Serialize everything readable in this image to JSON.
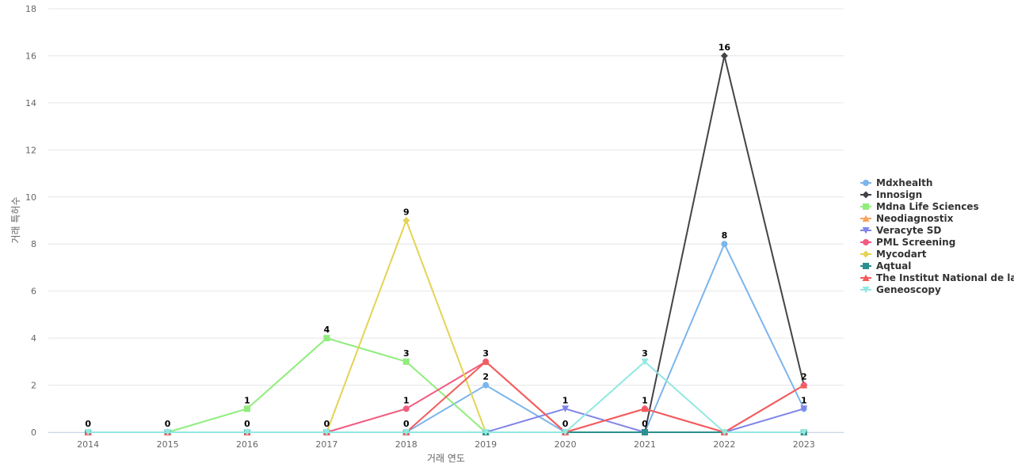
{
  "chart_data": {
    "type": "line",
    "title": "",
    "xlabel": "거래 연도",
    "ylabel": "거래 특허수",
    "ylim": [
      0,
      18
    ],
    "yticks": [
      0,
      2,
      4,
      6,
      8,
      10,
      12,
      14,
      16,
      18
    ],
    "categories": [
      "2014",
      "2015",
      "2016",
      "2017",
      "2018",
      "2019",
      "2020",
      "2021",
      "2022",
      "2023"
    ],
    "grid": true,
    "legend_position": "right",
    "series": [
      {
        "name": "Mdxhealth",
        "color": "#7cb5ec",
        "marker": "circle",
        "values": [
          0,
          0,
          0,
          0,
          0,
          2,
          0,
          0,
          8,
          1
        ]
      },
      {
        "name": "Innosign",
        "color": "#434348",
        "marker": "diamond",
        "values": [
          0,
          0,
          0,
          0,
          0,
          0,
          0,
          0,
          16,
          2
        ]
      },
      {
        "name": "Mdna Life Sciences",
        "color": "#90ed7d",
        "marker": "square",
        "values": [
          0,
          0,
          1,
          4,
          3,
          0,
          0,
          0,
          0,
          0
        ]
      },
      {
        "name": "Neodiagnostix",
        "color": "#f7a35c",
        "marker": "triangle",
        "values": [
          0,
          0,
          0,
          0,
          0,
          0,
          0,
          0,
          0,
          0
        ]
      },
      {
        "name": "Veracyte SD",
        "color": "#8085e9",
        "marker": "triangle-down",
        "values": [
          0,
          0,
          0,
          0,
          0,
          0,
          1,
          0,
          0,
          1
        ]
      },
      {
        "name": "PML Screening",
        "color": "#f15c80",
        "marker": "circle",
        "values": [
          0,
          0,
          0,
          0,
          1,
          3,
          0,
          1,
          0,
          2
        ]
      },
      {
        "name": "Mycodart",
        "color": "#e4d354",
        "marker": "diamond",
        "values": [
          0,
          0,
          0,
          0,
          9,
          0,
          0,
          0,
          0,
          0
        ]
      },
      {
        "name": "Aqtual",
        "color": "#2b908f",
        "marker": "square",
        "values": [
          0,
          0,
          0,
          0,
          0,
          0,
          0,
          0,
          0,
          0
        ]
      },
      {
        "name": "The Institut National de la...",
        "color": "#f45b5b",
        "marker": "triangle",
        "values": [
          0,
          0,
          0,
          0,
          0,
          3,
          0,
          1,
          0,
          2
        ]
      },
      {
        "name": "Geneoscopy",
        "color": "#91e8e1",
        "marker": "triangle-down",
        "values": [
          0,
          0,
          0,
          0,
          0,
          0,
          0,
          3,
          0,
          0
        ]
      }
    ],
    "data_labels": [
      {
        "series": "Mdxhealth",
        "category": "2014",
        "value": 0
      },
      {
        "series": "Mdxhealth",
        "category": "2015",
        "value": 0
      },
      {
        "series": "Mdxhealth",
        "category": "2016",
        "value": 0
      },
      {
        "series": "Mdxhealth",
        "category": "2017",
        "value": 0
      },
      {
        "series": "Mdxhealth",
        "category": "2018",
        "value": 0
      },
      {
        "series": "Mdxhealth",
        "category": "2019",
        "value": 2
      },
      {
        "series": "Mdxhealth",
        "category": "2020",
        "value": 0
      },
      {
        "series": "Mdxhealth",
        "category": "2021",
        "value": 0
      },
      {
        "series": "Mdxhealth",
        "category": "2022",
        "value": 8
      },
      {
        "series": "Mdxhealth",
        "category": "2023",
        "value": 1
      },
      {
        "series": "Innosign",
        "category": "2022",
        "value": 16
      },
      {
        "series": "Innosign",
        "category": "2023",
        "value": 2
      },
      {
        "series": "Mdna Life Sciences",
        "category": "2016",
        "value": 1
      },
      {
        "series": "Mdna Life Sciences",
        "category": "2017",
        "value": 4
      },
      {
        "series": "Mdna Life Sciences",
        "category": "2018",
        "value": 3
      },
      {
        "series": "Veracyte SD",
        "category": "2020",
        "value": 1
      },
      {
        "series": "PML Screening",
        "category": "2018",
        "value": 1
      },
      {
        "series": "PML Screening",
        "category": "2019",
        "value": 3
      },
      {
        "series": "PML Screening",
        "category": "2021",
        "value": 1
      },
      {
        "series": "Mycodart",
        "category": "2018",
        "value": 9
      },
      {
        "series": "Geneoscopy",
        "category": "2021",
        "value": 3
      }
    ]
  }
}
